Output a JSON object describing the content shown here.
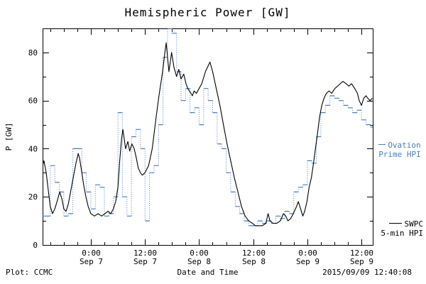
{
  "footer": {
    "credit": "Plot: CCMC",
    "timestamp": "2015/09/09 12:40:08"
  },
  "legend": {
    "ovation_line1": "Ovation",
    "ovation_line2": "Prime HPI",
    "swpc_line1": "SWPC",
    "swpc_line2": "5-min HPI"
  },
  "colors": {
    "ovation": "#4a7cc0",
    "swpc": "#000000",
    "axis": "#000000",
    "background": "#ffffff"
  },
  "chart_data": {
    "type": "line",
    "title": "Hemispheric Power [GW]",
    "xlabel": "Date and Time",
    "ylabel": "P [GW]",
    "x_unit": "hours since 2015-09-06 00:00 UT",
    "xlim": [
      13.3,
      86.5
    ],
    "ylim": [
      0,
      90
    ],
    "yticks": [
      0,
      20,
      40,
      60,
      80
    ],
    "yticks_minor": [
      10,
      30,
      50,
      70
    ],
    "xtick_minor_step": 3,
    "xticks": [
      {
        "t": 24,
        "l1": "0:00",
        "l2": "Sep 7"
      },
      {
        "t": 36,
        "l1": "12:00",
        "l2": "Sep 7"
      },
      {
        "t": 48,
        "l1": "0:00",
        "l2": "Sep 8"
      },
      {
        "t": 60,
        "l1": "12:00",
        "l2": "Sep 8"
      },
      {
        "t": 72,
        "l1": "0:00",
        "l2": "Sep 9"
      },
      {
        "t": 84,
        "l1": "12:00",
        "l2": "Sep 9"
      }
    ],
    "grid": false,
    "legend_position": "right-margin",
    "series": [
      {
        "id": "ovation",
        "name": "Ovation Prime HPI",
        "style": "step",
        "color": "#4a7cc0",
        "points": [
          [
            13,
            12
          ],
          [
            14,
            12
          ],
          [
            15,
            33
          ],
          [
            16,
            26
          ],
          [
            17,
            22
          ],
          [
            18,
            12
          ],
          [
            19,
            13
          ],
          [
            20,
            40
          ],
          [
            21,
            40
          ],
          [
            22,
            30
          ],
          [
            23,
            22
          ],
          [
            24,
            15
          ],
          [
            25,
            25
          ],
          [
            26,
            24
          ],
          [
            27,
            12
          ],
          [
            28,
            13
          ],
          [
            29,
            20
          ],
          [
            30,
            55
          ],
          [
            31,
            20
          ],
          [
            32,
            12
          ],
          [
            33,
            45
          ],
          [
            34,
            48
          ],
          [
            35,
            40
          ],
          [
            36,
            10
          ],
          [
            37,
            30
          ],
          [
            38,
            33
          ],
          [
            39,
            50
          ],
          [
            40,
            78
          ],
          [
            41,
            90
          ],
          [
            42,
            88
          ],
          [
            43,
            72
          ],
          [
            44,
            60
          ],
          [
            45,
            65
          ],
          [
            46,
            55
          ],
          [
            47,
            57
          ],
          [
            48,
            50
          ],
          [
            49,
            65
          ],
          [
            50,
            60
          ],
          [
            51,
            55
          ],
          [
            52,
            42
          ],
          [
            53,
            40
          ],
          [
            54,
            30
          ],
          [
            55,
            22
          ],
          [
            56,
            16
          ],
          [
            57,
            13
          ],
          [
            58,
            10
          ],
          [
            59,
            8
          ],
          [
            60,
            8
          ],
          [
            61,
            10
          ],
          [
            62,
            9
          ],
          [
            63,
            10
          ],
          [
            64,
            9
          ],
          [
            65,
            12
          ],
          [
            66,
            11
          ],
          [
            67,
            14
          ],
          [
            68,
            13
          ],
          [
            69,
            22
          ],
          [
            70,
            24
          ],
          [
            71,
            25
          ],
          [
            72,
            35
          ],
          [
            73,
            34
          ],
          [
            74,
            45
          ],
          [
            75,
            55
          ],
          [
            76,
            58
          ],
          [
            77,
            62
          ],
          [
            78,
            61
          ],
          [
            79,
            60
          ],
          [
            80,
            58
          ],
          [
            81,
            57
          ],
          [
            82,
            55
          ],
          [
            83,
            56
          ],
          [
            84,
            52
          ],
          [
            85,
            50
          ],
          [
            86,
            49
          ]
        ]
      },
      {
        "id": "swpc",
        "name": "SWPC 5-min HPI",
        "style": "line",
        "color": "#000000",
        "points": [
          [
            13.3,
            33
          ],
          [
            13.6,
            35
          ],
          [
            14.1,
            30
          ],
          [
            14.6,
            22
          ],
          [
            15,
            16
          ],
          [
            15.5,
            13
          ],
          [
            16,
            15
          ],
          [
            16.5,
            18
          ],
          [
            17.1,
            22
          ],
          [
            17.6,
            19
          ],
          [
            18,
            15
          ],
          [
            18.5,
            14
          ],
          [
            19,
            17
          ],
          [
            19.6,
            23
          ],
          [
            20.2,
            29
          ],
          [
            20.7,
            34
          ],
          [
            21.2,
            38
          ],
          [
            21.5,
            36
          ],
          [
            22,
            30
          ],
          [
            22.4,
            25
          ],
          [
            22.9,
            20
          ],
          [
            23.4,
            16
          ],
          [
            24,
            13
          ],
          [
            24.8,
            12
          ],
          [
            25.6,
            13
          ],
          [
            26.4,
            12
          ],
          [
            27.1,
            13
          ],
          [
            27.8,
            14
          ],
          [
            28.4,
            13
          ],
          [
            29,
            15
          ],
          [
            29.5,
            18
          ],
          [
            30,
            24
          ],
          [
            30.4,
            35
          ],
          [
            30.8,
            44
          ],
          [
            31.1,
            48
          ],
          [
            31.4,
            44
          ],
          [
            31.7,
            40
          ],
          [
            32.2,
            43
          ],
          [
            32.6,
            39
          ],
          [
            33.1,
            42
          ],
          [
            33.6,
            40
          ],
          [
            34.1,
            36
          ],
          [
            34.5,
            32
          ],
          [
            35,
            30
          ],
          [
            35.4,
            29
          ],
          [
            36,
            30
          ],
          [
            36.8,
            33
          ],
          [
            37.6,
            40
          ],
          [
            38.4,
            52
          ],
          [
            39.1,
            62
          ],
          [
            39.9,
            72
          ],
          [
            40.4,
            80
          ],
          [
            40.7,
            84
          ],
          [
            41,
            78
          ],
          [
            41.3,
            72
          ],
          [
            41.6,
            76
          ],
          [
            41.9,
            80
          ],
          [
            42.4,
            74
          ],
          [
            43,
            70
          ],
          [
            43.5,
            73
          ],
          [
            44,
            69
          ],
          [
            44.6,
            71
          ],
          [
            45.1,
            67
          ],
          [
            45.5,
            65
          ],
          [
            46.2,
            63
          ],
          [
            46.5,
            62
          ],
          [
            46.9,
            64
          ],
          [
            47.4,
            63
          ],
          [
            48,
            65
          ],
          [
            48.6,
            67
          ],
          [
            49.4,
            72
          ],
          [
            50.4,
            76
          ],
          [
            51,
            72
          ],
          [
            51.8,
            65
          ],
          [
            52.6,
            58
          ],
          [
            53.4,
            50
          ],
          [
            54.2,
            42
          ],
          [
            55,
            35
          ],
          [
            55.8,
            28
          ],
          [
            56.6,
            22
          ],
          [
            57.4,
            16
          ],
          [
            58.2,
            12
          ],
          [
            59,
            10
          ],
          [
            59.8,
            9
          ],
          [
            60.5,
            8
          ],
          [
            62,
            8
          ],
          [
            62.8,
            9
          ],
          [
            63.3,
            13
          ],
          [
            63.7,
            10
          ],
          [
            64.4,
            9
          ],
          [
            65.2,
            9
          ],
          [
            66,
            10
          ],
          [
            66.7,
            13
          ],
          [
            67.2,
            12
          ],
          [
            67.7,
            10
          ],
          [
            68.3,
            11
          ],
          [
            68.9,
            13
          ],
          [
            69.6,
            16
          ],
          [
            70,
            18
          ],
          [
            70.5,
            15
          ],
          [
            71,
            12
          ],
          [
            71.4,
            14
          ],
          [
            71.9,
            18
          ],
          [
            72.4,
            24
          ],
          [
            72.9,
            28
          ],
          [
            73.3,
            33
          ],
          [
            73.8,
            40
          ],
          [
            74.3,
            47
          ],
          [
            74.7,
            53
          ],
          [
            75.2,
            58
          ],
          [
            75.7,
            61
          ],
          [
            76.2,
            63
          ],
          [
            76.8,
            64
          ],
          [
            77.4,
            63
          ],
          [
            78.1,
            65
          ],
          [
            78.7,
            66
          ],
          [
            79.3,
            67
          ],
          [
            79.9,
            68
          ],
          [
            80.6,
            67
          ],
          [
            81.2,
            66
          ],
          [
            81.8,
            67
          ],
          [
            82.5,
            65
          ],
          [
            83.1,
            63
          ],
          [
            83.5,
            60
          ],
          [
            84,
            58
          ],
          [
            84.5,
            61
          ],
          [
            85,
            62
          ],
          [
            85.4,
            61
          ],
          [
            85.9,
            60
          ],
          [
            86.4,
            61
          ]
        ]
      }
    ]
  }
}
